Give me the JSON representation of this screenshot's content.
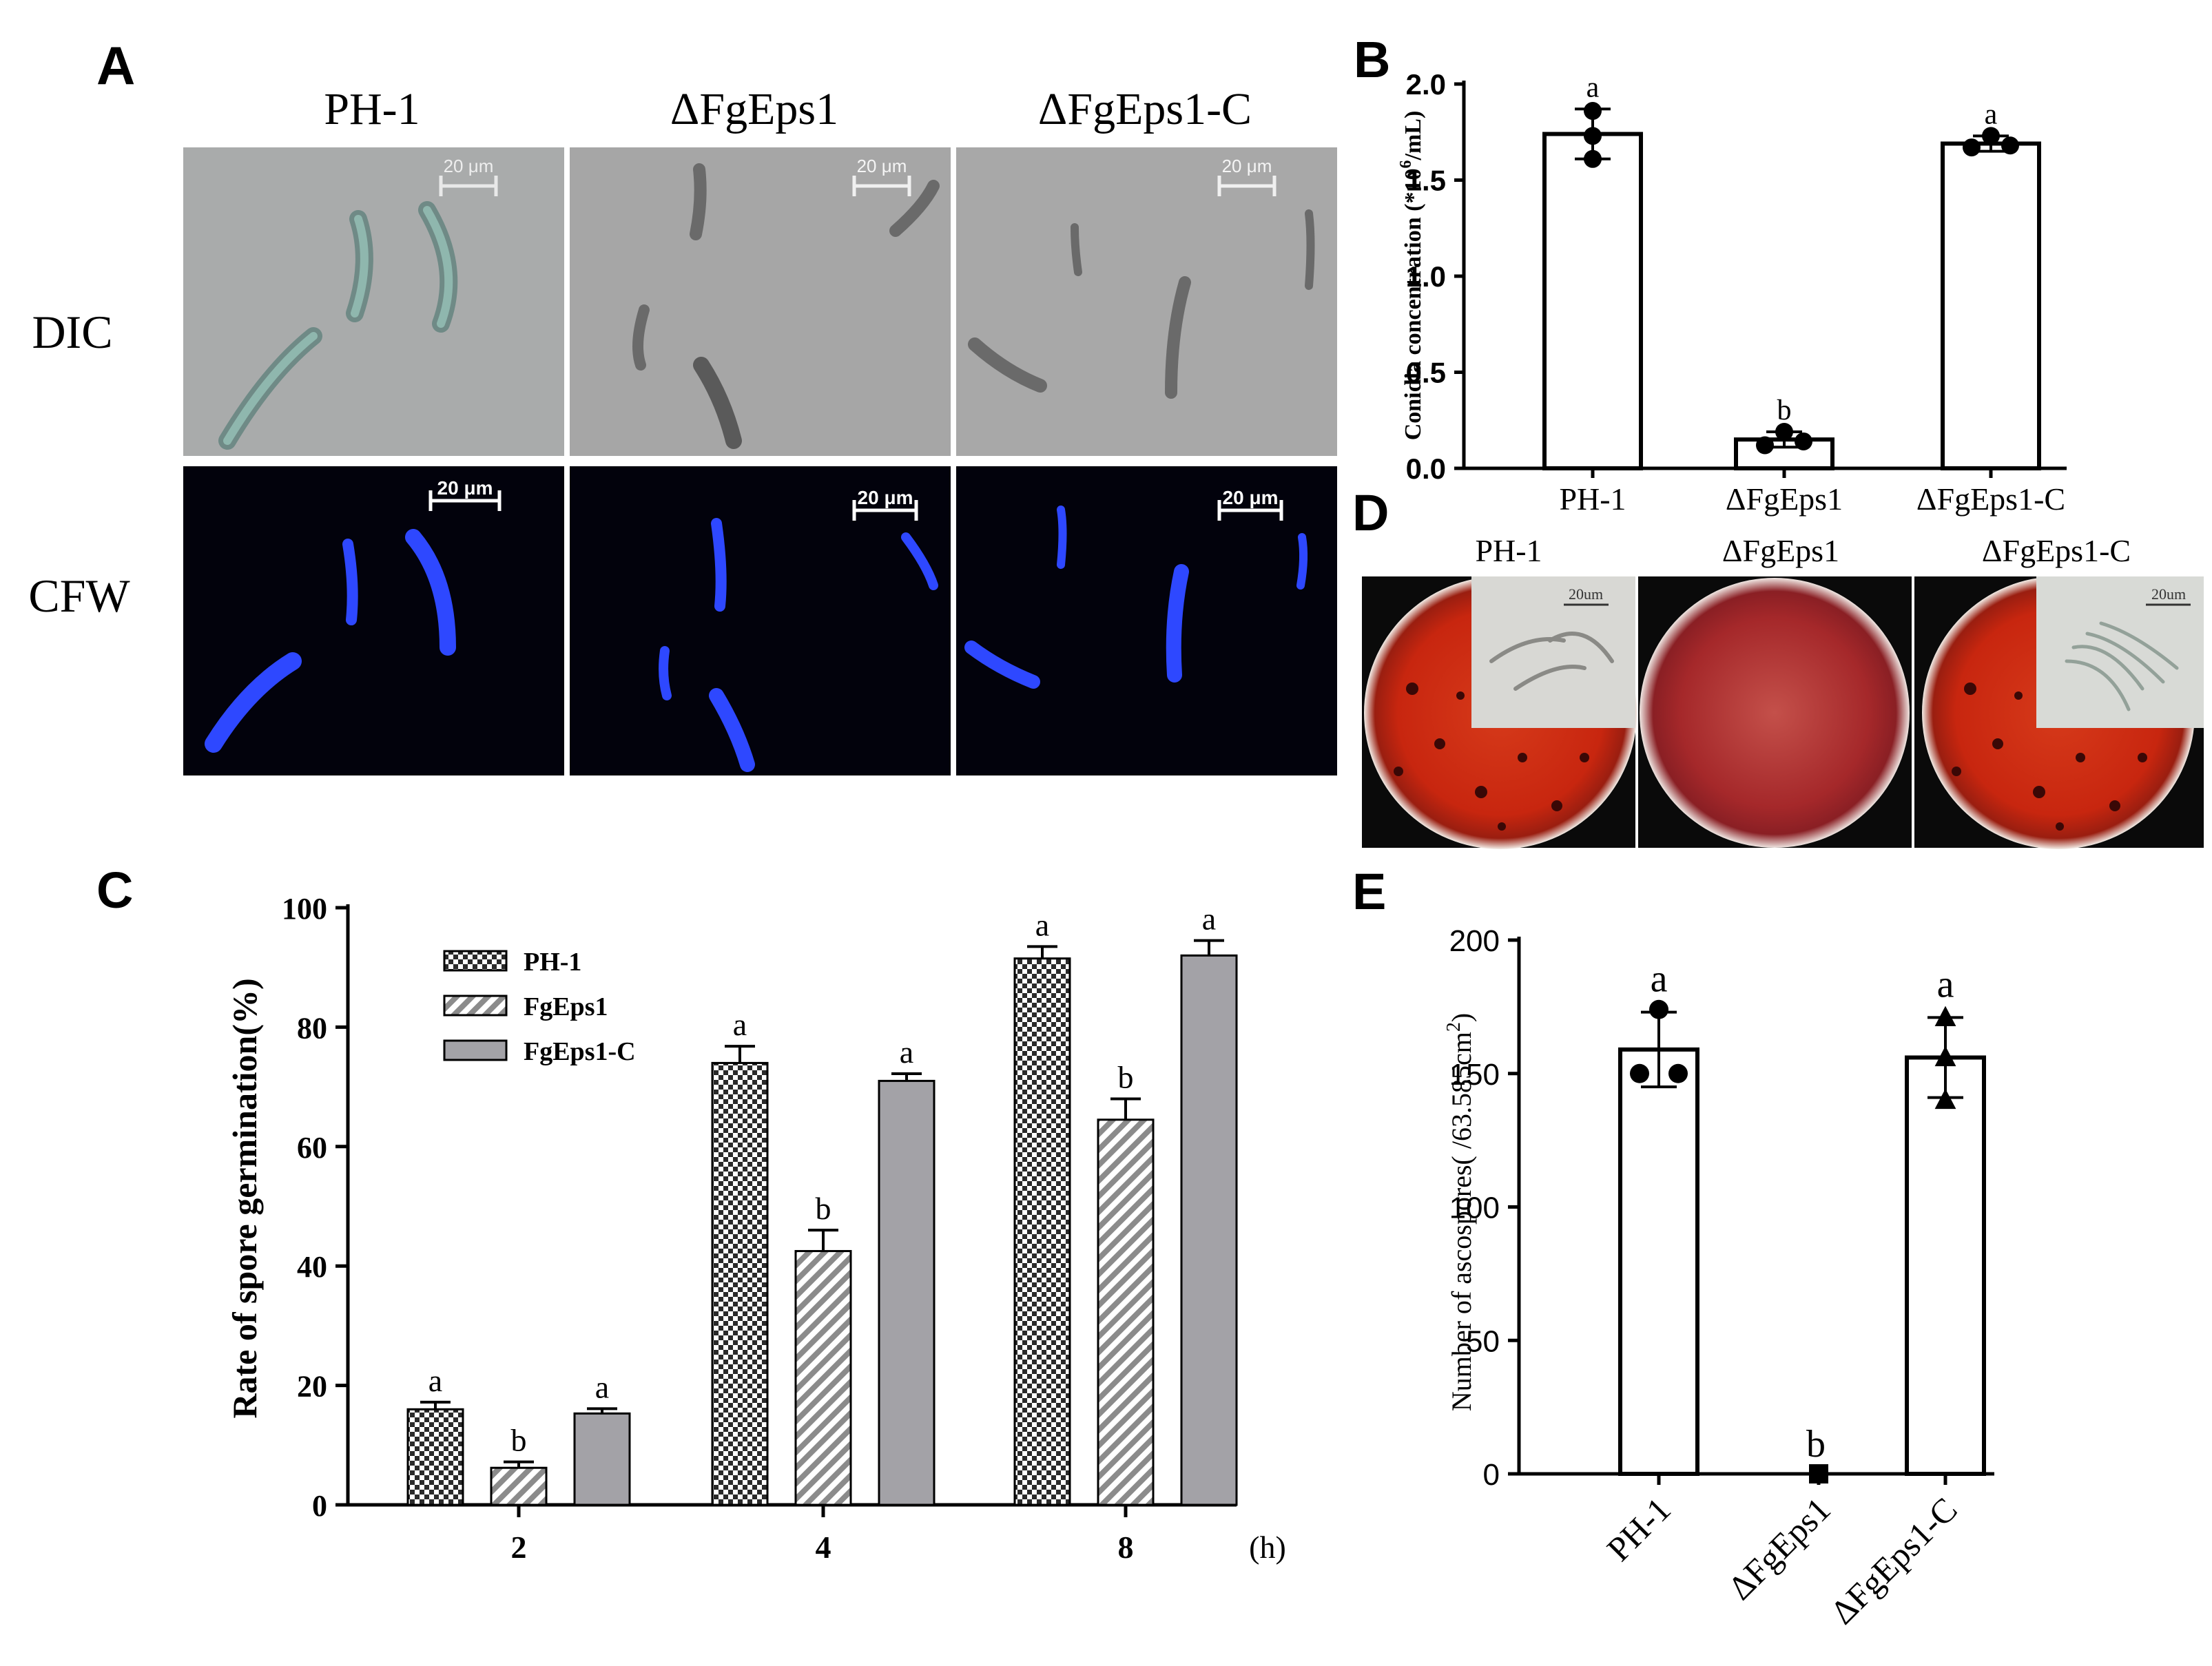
{
  "panels": {
    "A": {
      "letter": "A",
      "columns": [
        "PH-1",
        "ΔFgEps1",
        "ΔFgEps1-C"
      ],
      "rows": [
        "DIC",
        "CFW"
      ],
      "scale_bar": "20 μm",
      "colors": {
        "dic_background": "#a9abab",
        "cfw_background": "#02020c",
        "cfw_spore": "#2e48ff"
      }
    },
    "B": {
      "letter": "B"
    },
    "C": {
      "letter": "C"
    },
    "D": {
      "letter": "D",
      "columns": [
        "PH-1",
        "ΔFgEps1",
        "ΔFgEps1-C"
      ],
      "scale_bar": "20um",
      "colors": {
        "plate_red": "#c8260f",
        "plate_mutant": "#a5282a"
      }
    },
    "E": {
      "letter": "E"
    }
  },
  "chart_data": [
    {
      "panel": "B",
      "type": "bar",
      "categories": [
        "PH-1",
        "ΔFgEps1",
        "ΔFgEps1-C"
      ],
      "values": [
        1.74,
        0.15,
        1.69
      ],
      "errors": [
        0.13,
        0.04,
        0.04
      ],
      "points": [
        [
          1.86,
          1.73,
          1.61
        ],
        [
          0.12,
          0.19,
          0.14
        ],
        [
          1.67,
          1.73,
          1.68
        ]
      ],
      "significance": [
        "a",
        "b",
        "a"
      ],
      "ylabel_base": "Conidia concentration (*10",
      "ylabel_exp": "6",
      "ylabel_tail": "/mL)",
      "ylim": [
        0,
        2.0
      ],
      "yticks": [
        "0.0",
        "0.5",
        "1.0",
        "1.5",
        "2.0"
      ]
    },
    {
      "panel": "C",
      "type": "bar",
      "categories": [
        "2",
        "4",
        "8"
      ],
      "x_unit": "(h)",
      "series": [
        {
          "name": "PH-1",
          "values": [
            16,
            74,
            91.5
          ],
          "errors": [
            1.2,
            2.8,
            2.0
          ],
          "pattern": "checker"
        },
        {
          "name": "FgEps1",
          "values": [
            6.2,
            42.5,
            64.5
          ],
          "errors": [
            1.0,
            3.5,
            3.5
          ],
          "pattern": "hatch"
        },
        {
          "name": "FgEps1-C",
          "values": [
            15.3,
            71,
            92
          ],
          "errors": [
            0.8,
            1.2,
            2.5
          ],
          "pattern": "solid"
        }
      ],
      "significance": [
        [
          "a",
          "a",
          "a"
        ],
        [
          "b",
          "b",
          "b"
        ],
        [
          "a",
          "a",
          "a"
        ]
      ],
      "ylabel": "Rate of spore germination(%)",
      "ylim": [
        0,
        100
      ],
      "yticks": [
        "0",
        "20",
        "40",
        "60",
        "80",
        "100"
      ],
      "legend": "top-left",
      "colors": {
        "solid": "#a3a2a7",
        "hatch": "#8b8b8b",
        "checker": "#2a2a2a"
      }
    },
    {
      "panel": "E",
      "type": "bar",
      "categories": [
        "PH-1",
        "ΔFgEps1",
        "ΔFgEps1-C"
      ],
      "values": [
        159,
        0,
        156
      ],
      "errors": [
        14,
        0,
        15
      ],
      "points": [
        [
          150,
          150,
          174
        ],
        [
          0,
          0,
          0
        ],
        [
          171,
          140,
          156
        ]
      ],
      "markers": [
        "circle",
        "square",
        "triangle"
      ],
      "significance": [
        "a",
        "b",
        "a"
      ],
      "ylabel_base": "Number of ascospores",
      "ylabel_mid": "( /63.585cm",
      "ylabel_exp": "2",
      "ylabel_tail": ")",
      "ylim": [
        0,
        200
      ],
      "yticks": [
        "0",
        "50",
        "100",
        "150",
        "200"
      ]
    }
  ]
}
